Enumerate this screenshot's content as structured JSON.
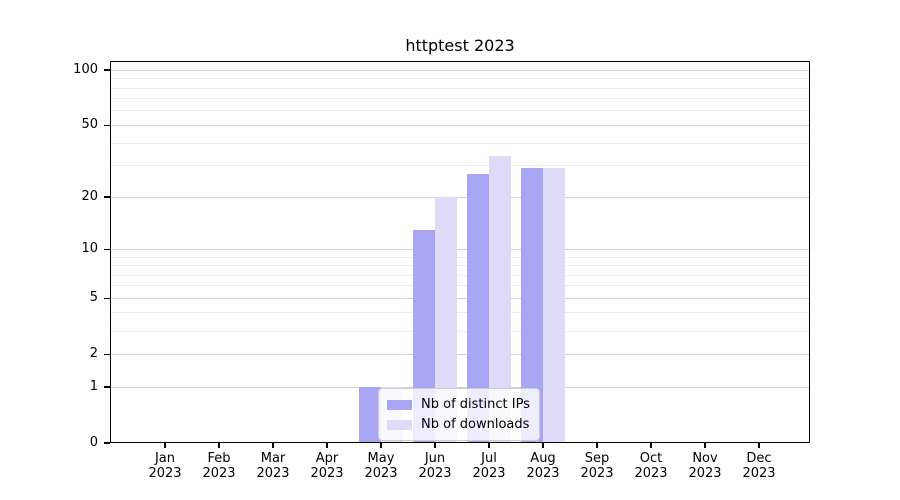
{
  "chart_data": {
    "type": "bar",
    "title": "httptest 2023",
    "scale": "log1p",
    "categories": [
      {
        "month": "Jan",
        "year": "2023"
      },
      {
        "month": "Feb",
        "year": "2023"
      },
      {
        "month": "Mar",
        "year": "2023"
      },
      {
        "month": "Apr",
        "year": "2023"
      },
      {
        "month": "May",
        "year": "2023"
      },
      {
        "month": "Jun",
        "year": "2023"
      },
      {
        "month": "Jul",
        "year": "2023"
      },
      {
        "month": "Aug",
        "year": "2023"
      },
      {
        "month": "Sep",
        "year": "2023"
      },
      {
        "month": "Oct",
        "year": "2023"
      },
      {
        "month": "Nov",
        "year": "2023"
      },
      {
        "month": "Dec",
        "year": "2023"
      }
    ],
    "series": [
      {
        "name": "Nb of distinct IPs",
        "color": "#a6a6f3",
        "values": [
          0,
          0,
          0,
          0,
          1,
          13,
          27,
          29,
          0,
          0,
          0,
          0
        ]
      },
      {
        "name": "Nb of downloads",
        "color": "#dcdcf8",
        "values": [
          0,
          0,
          0,
          0,
          1,
          20,
          34,
          29,
          0,
          0,
          0,
          0
        ]
      }
    ],
    "yticks": [
      0,
      1,
      2,
      5,
      10,
      20,
      50,
      100
    ],
    "minor_grid_values": [
      3,
      4,
      6,
      7,
      8,
      9,
      30,
      40,
      60,
      70,
      80,
      90
    ],
    "ylim": [
      0,
      112
    ],
    "grid": "on",
    "legend_position": "lower-center",
    "colors": {
      "major_gridline": "#d0d0d0",
      "minor_gridline": "#ebebeb",
      "axis": "#000000",
      "background": "#ffffff"
    }
  }
}
